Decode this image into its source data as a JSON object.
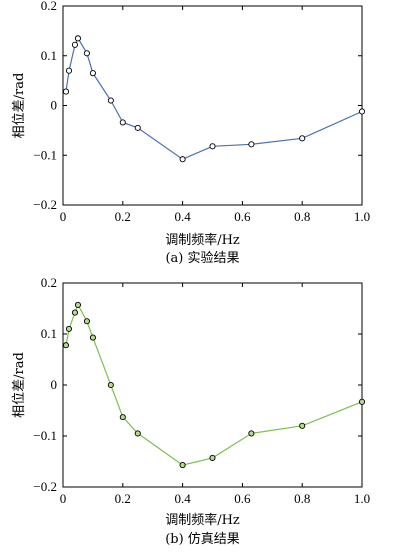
{
  "chart_data": [
    {
      "type": "line",
      "caption": "(a) 实验结果",
      "xlabel": "调制频率/Hz",
      "ylabel": "相位差/rad",
      "xlim": [
        0,
        1.0
      ],
      "ylim": [
        -0.2,
        0.2
      ],
      "xticks": [
        "0",
        "0.2",
        "0.4",
        "0.6",
        "0.8",
        "1.0"
      ],
      "yticks": [
        "0.2",
        "0.1",
        "0",
        "−0.1",
        "−0.2"
      ],
      "line_color": "#4a6fb5",
      "marker_fill": "#ffffff",
      "x": [
        0.01,
        0.02,
        0.04,
        0.05,
        0.08,
        0.1,
        0.16,
        0.2,
        0.25,
        0.4,
        0.5,
        0.63,
        0.8,
        1.0
      ],
      "y": [
        0.028,
        0.07,
        0.122,
        0.135,
        0.105,
        0.065,
        0.01,
        -0.034,
        -0.045,
        -0.108,
        -0.082,
        -0.078,
        -0.066,
        -0.012
      ]
    },
    {
      "type": "line",
      "caption": "(b) 仿真结果",
      "xlabel": "调制频率/Hz",
      "ylabel": "相位差/rad",
      "xlim": [
        0,
        1.0
      ],
      "ylim": [
        -0.2,
        0.2
      ],
      "xticks": [
        "0",
        "0.2",
        "0.4",
        "0.6",
        "0.8",
        "1.0"
      ],
      "yticks": [
        "0.2",
        "0.1",
        "0",
        "−0.1",
        "−0.2"
      ],
      "line_color": "#7dbf4e",
      "marker_fill": "#b7da8f",
      "x": [
        0.01,
        0.02,
        0.04,
        0.05,
        0.08,
        0.1,
        0.16,
        0.2,
        0.25,
        0.4,
        0.5,
        0.63,
        0.8,
        1.0
      ],
      "y": [
        0.078,
        0.11,
        0.142,
        0.157,
        0.125,
        0.093,
        0.0,
        -0.063,
        -0.095,
        -0.157,
        -0.143,
        -0.095,
        -0.08,
        -0.033
      ]
    }
  ]
}
